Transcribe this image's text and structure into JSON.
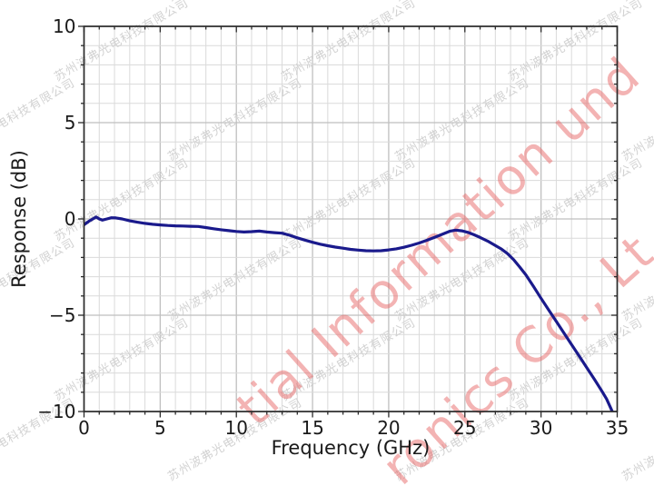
{
  "chart_data": {
    "type": "line",
    "title": "",
    "xlabel": "Frequency (GHz)",
    "ylabel": "Response (dB)",
    "xlim": [
      0,
      35
    ],
    "ylim": [
      -10,
      10
    ],
    "xticks_major": [
      0,
      5,
      10,
      15,
      20,
      25,
      30,
      35
    ],
    "yticks_major": [
      -10,
      -5,
      0,
      5,
      10
    ],
    "xtick_labels": [
      "0",
      "5",
      "10",
      "15",
      "20",
      "25",
      "30",
      "35"
    ],
    "ytick_labels": [
      "−10",
      "−5",
      "0",
      "5",
      "10"
    ],
    "minor_step_x": 1,
    "minor_step_y": 1,
    "grid": true,
    "legend": "none",
    "line_color": "#1a1a8c",
    "series": [
      {
        "name": "response",
        "points": [
          [
            0,
            -0.3
          ],
          [
            0.3,
            -0.13
          ],
          [
            0.5,
            -0.04
          ],
          [
            0.8,
            0.1
          ],
          [
            1.0,
            0.0
          ],
          [
            1.2,
            -0.06
          ],
          [
            1.5,
            0.0
          ],
          [
            1.8,
            0.06
          ],
          [
            2.1,
            0.05
          ],
          [
            2.5,
            0.0
          ],
          [
            3.0,
            -0.1
          ],
          [
            3.5,
            -0.17
          ],
          [
            4.0,
            -0.23
          ],
          [
            4.5,
            -0.28
          ],
          [
            5.0,
            -0.31
          ],
          [
            5.5,
            -0.34
          ],
          [
            6.0,
            -0.36
          ],
          [
            6.5,
            -0.37
          ],
          [
            7.0,
            -0.38
          ],
          [
            7.5,
            -0.39
          ],
          [
            8.0,
            -0.45
          ],
          [
            8.5,
            -0.51
          ],
          [
            9.0,
            -0.56
          ],
          [
            9.5,
            -0.61
          ],
          [
            10.0,
            -0.65
          ],
          [
            10.5,
            -0.68
          ],
          [
            11.0,
            -0.66
          ],
          [
            11.5,
            -0.63
          ],
          [
            12.0,
            -0.68
          ],
          [
            12.5,
            -0.71
          ],
          [
            13.0,
            -0.74
          ],
          [
            13.5,
            -0.85
          ],
          [
            14.0,
            -0.98
          ],
          [
            14.5,
            -1.1
          ],
          [
            15.0,
            -1.21
          ],
          [
            15.5,
            -1.31
          ],
          [
            16.0,
            -1.39
          ],
          [
            16.5,
            -1.46
          ],
          [
            17.0,
            -1.52
          ],
          [
            17.5,
            -1.58
          ],
          [
            18.0,
            -1.62
          ],
          [
            18.5,
            -1.65
          ],
          [
            19.0,
            -1.66
          ],
          [
            19.5,
            -1.65
          ],
          [
            20.0,
            -1.61
          ],
          [
            20.5,
            -1.55
          ],
          [
            21.0,
            -1.47
          ],
          [
            21.5,
            -1.37
          ],
          [
            22.0,
            -1.25
          ],
          [
            22.5,
            -1.11
          ],
          [
            23.0,
            -0.96
          ],
          [
            23.5,
            -0.8
          ],
          [
            24.0,
            -0.64
          ],
          [
            24.4,
            -0.58
          ],
          [
            24.8,
            -0.62
          ],
          [
            25.2,
            -0.7
          ],
          [
            25.6,
            -0.82
          ],
          [
            26.0,
            -0.96
          ],
          [
            26.5,
            -1.15
          ],
          [
            27.0,
            -1.38
          ],
          [
            27.4,
            -1.56
          ],
          [
            27.8,
            -1.8
          ],
          [
            28.2,
            -2.12
          ],
          [
            28.6,
            -2.5
          ],
          [
            29.0,
            -2.9
          ],
          [
            29.5,
            -3.5
          ],
          [
            30.0,
            -4.12
          ],
          [
            30.5,
            -4.72
          ],
          [
            31.0,
            -5.32
          ],
          [
            31.5,
            -5.92
          ],
          [
            32.0,
            -6.52
          ],
          [
            32.5,
            -7.12
          ],
          [
            33.0,
            -7.72
          ],
          [
            33.5,
            -8.32
          ],
          [
            34.0,
            -8.95
          ],
          [
            34.3,
            -9.35
          ],
          [
            34.65,
            -9.95
          ],
          [
            34.75,
            -10.15
          ]
        ]
      }
    ]
  },
  "watermarks": {
    "company_cn": "苏州波弗光电科技有限公司",
    "cn_color": "#d2d2d2",
    "red_line1": "tial Information und",
    "red_line2": "ronics Co., Lt",
    "red_color": "rgba(231,103,103,0.50)"
  },
  "style_colors": {
    "grid_minor": "#dadada",
    "grid_major": "#bfbfbf",
    "spine": "#2b2b2b",
    "tick_label": "#1a1a1a"
  }
}
